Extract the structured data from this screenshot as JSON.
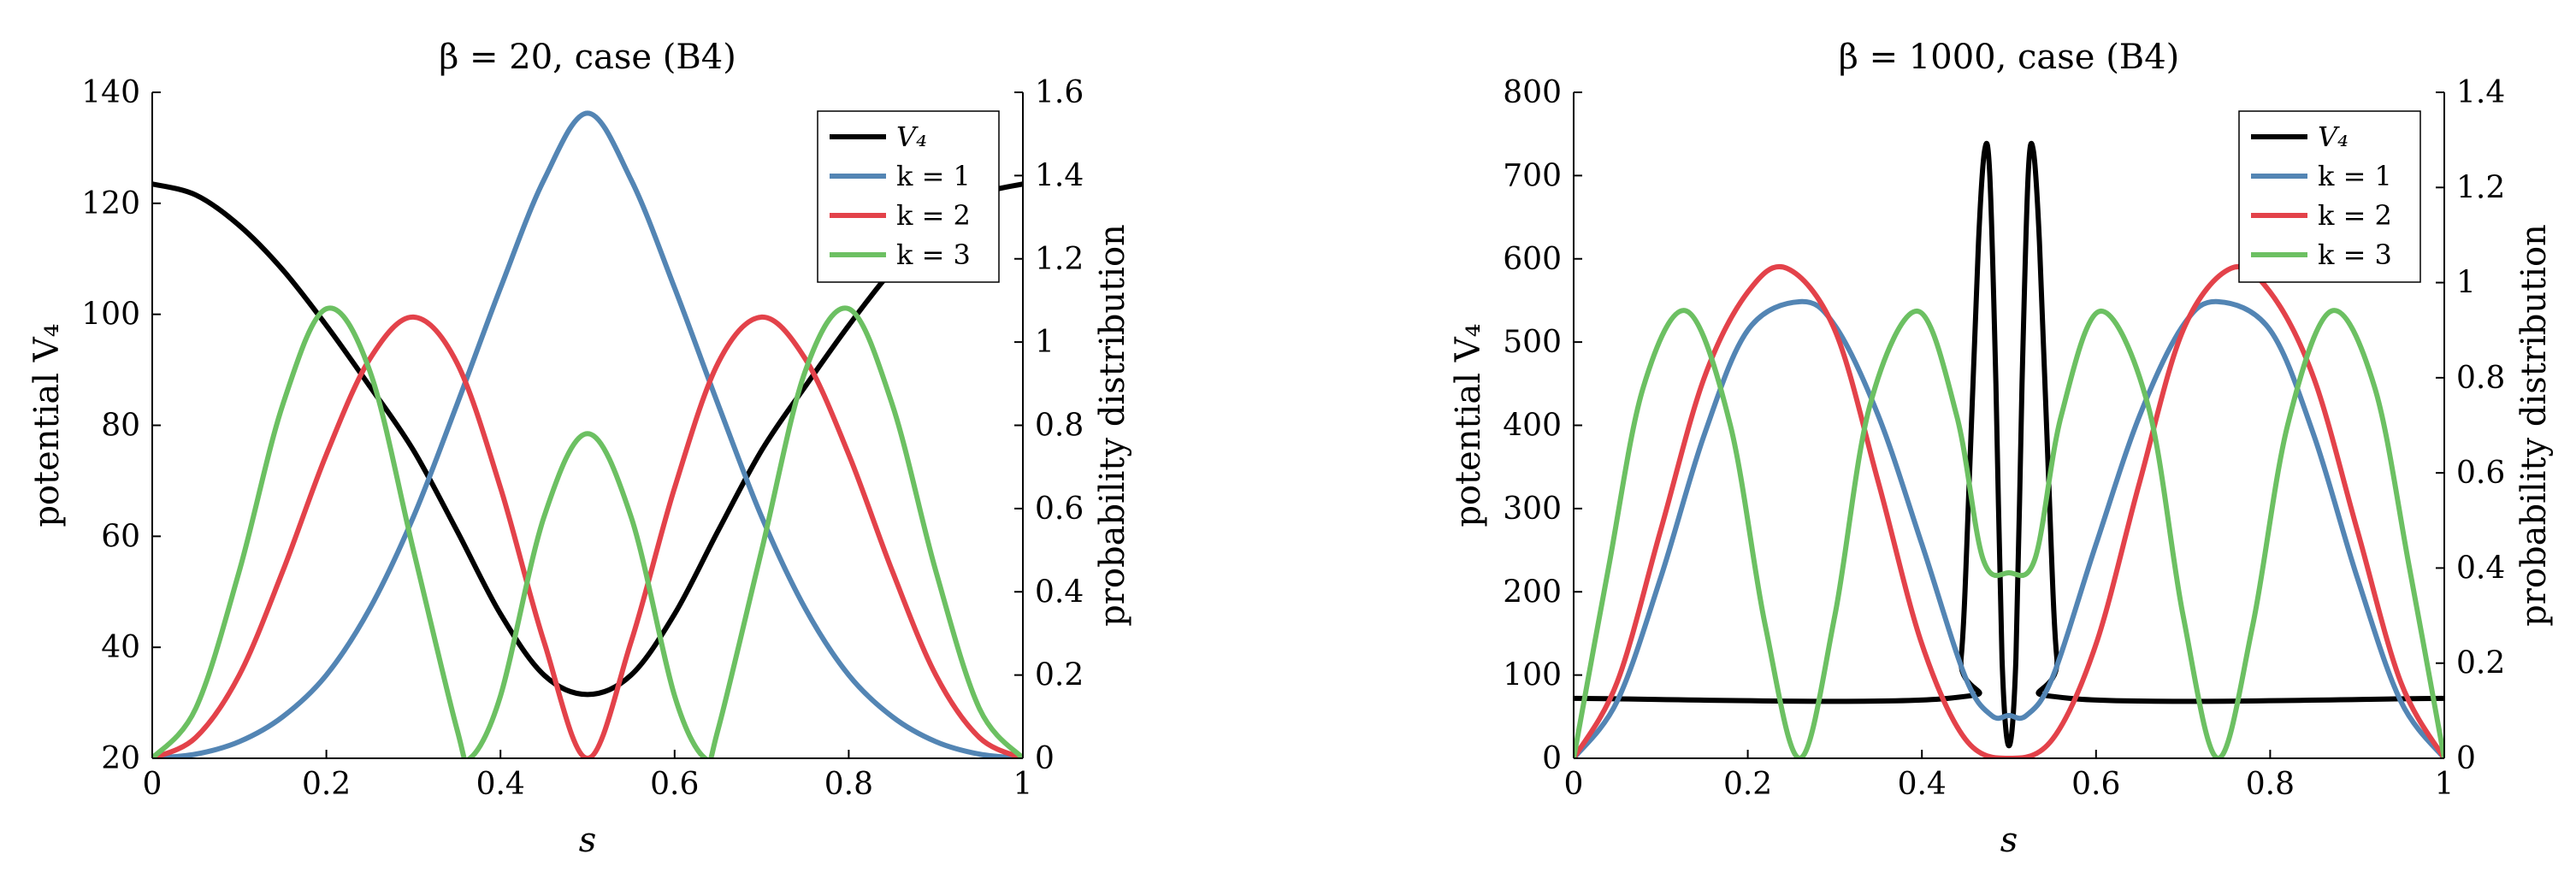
{
  "colors": {
    "V4": "#000000",
    "k1": "#5385b4",
    "k2": "#e3424a",
    "k3": "#6cc062"
  },
  "chart_data": [
    {
      "type": "line",
      "title": "β = 20, case (B4)",
      "xlabel": "s",
      "ylabel_left": "potential V₄",
      "ylabel_right": "probability distribution",
      "xlim": [
        0,
        1
      ],
      "ylim_left": [
        20,
        140
      ],
      "ylim_right": [
        0,
        1.6
      ],
      "xticks": [
        "0",
        "0.2",
        "0.4",
        "0.6",
        "0.8",
        "1"
      ],
      "yticks_left": [
        "20",
        "40",
        "60",
        "80",
        "100",
        "120",
        "140"
      ],
      "yticks_right": [
        "0",
        "0.2",
        "0.4",
        "0.6",
        "0.8",
        "1",
        "1.2",
        "1.4",
        "1.6"
      ],
      "legend": [
        "V₄",
        "k = 1",
        "k = 2",
        "k = 3"
      ],
      "legend_position": "top-right",
      "series": [
        {
          "name": "V₄",
          "axis": "left",
          "x": [
            0,
            0.05,
            0.1,
            0.15,
            0.2,
            0.25,
            0.3,
            0.35,
            0.4,
            0.45,
            0.5,
            0.55,
            0.6,
            0.65,
            0.7,
            0.75,
            0.8,
            0.85,
            0.9,
            0.95,
            1
          ],
          "values": [
            123.5,
            121.5,
            116,
            108,
            98,
            87,
            75.5,
            61,
            46,
            35,
            31.5,
            35,
            46,
            61,
            75.5,
            87,
            98,
            108,
            116,
            121.5,
            123.5
          ]
        },
        {
          "name": "k = 1",
          "axis": "right",
          "x": [
            0,
            0.05,
            0.1,
            0.15,
            0.2,
            0.25,
            0.3,
            0.35,
            0.4,
            0.45,
            0.5,
            0.55,
            0.6,
            0.65,
            0.7,
            0.75,
            0.8,
            0.85,
            0.9,
            0.95,
            1
          ],
          "values": [
            0,
            0.01,
            0.04,
            0.1,
            0.2,
            0.36,
            0.58,
            0.85,
            1.13,
            1.39,
            1.55,
            1.39,
            1.13,
            0.85,
            0.58,
            0.36,
            0.2,
            0.1,
            0.04,
            0.01,
            0
          ]
        },
        {
          "name": "k = 2",
          "axis": "right",
          "x": [
            0,
            0.05,
            0.1,
            0.15,
            0.2,
            0.25,
            0.3,
            0.35,
            0.4,
            0.45,
            0.5,
            0.55,
            0.6,
            0.65,
            0.7,
            0.75,
            0.8,
            0.85,
            0.9,
            0.95,
            1
          ],
          "values": [
            0,
            0.05,
            0.2,
            0.45,
            0.73,
            0.96,
            1.06,
            0.95,
            0.65,
            0.28,
            0,
            0.28,
            0.65,
            0.95,
            1.06,
            0.96,
            0.73,
            0.45,
            0.2,
            0.05,
            0
          ]
        },
        {
          "name": "k = 3",
          "axis": "right",
          "x": [
            0,
            0.05,
            0.1,
            0.15,
            0.2,
            0.25,
            0.3,
            0.35,
            0.365,
            0.4,
            0.45,
            0.5,
            0.55,
            0.6,
            0.635,
            0.65,
            0.7,
            0.75,
            0.8,
            0.85,
            0.9,
            0.95,
            1
          ],
          "values": [
            0,
            0.12,
            0.45,
            0.85,
            1.08,
            0.93,
            0.5,
            0.07,
            0,
            0.15,
            0.58,
            0.78,
            0.58,
            0.15,
            0,
            0.07,
            0.5,
            0.93,
            1.08,
            0.85,
            0.45,
            0.12,
            0
          ]
        }
      ]
    },
    {
      "type": "line",
      "title": "β = 1000, case (B4)",
      "xlabel": "s",
      "ylabel_left": "potential V₄",
      "ylabel_right": "probability distribution",
      "xlim": [
        0,
        1
      ],
      "ylim_left": [
        0,
        800
      ],
      "ylim_right": [
        0,
        1.4
      ],
      "xticks": [
        "0",
        "0.2",
        "0.4",
        "0.6",
        "0.8",
        "1"
      ],
      "yticks_left": [
        "0",
        "100",
        "200",
        "300",
        "400",
        "500",
        "600",
        "700",
        "800"
      ],
      "yticks_right": [
        "0",
        "0.2",
        "0.4",
        "0.6",
        "0.8",
        "1",
        "1.2",
        "1.4"
      ],
      "legend": [
        "V₄",
        "k = 1",
        "k = 2",
        "k = 3"
      ],
      "legend_position": "top-right",
      "series": [
        {
          "name": "V₄",
          "axis": "left",
          "x": [
            0,
            0.43,
            0.445,
            0.455,
            0.465,
            0.472,
            0.478,
            0.485,
            0.492,
            0.5,
            0.508,
            0.515,
            0.522,
            0.528,
            0.535,
            0.545,
            0.555,
            0.57,
            1
          ],
          "values": [
            72,
            72,
            120,
            350,
            620,
            730,
            700,
            450,
            120,
            15,
            120,
            450,
            700,
            730,
            620,
            350,
            120,
            72,
            72
          ]
        },
        {
          "name": "k = 1",
          "axis": "right",
          "x": [
            0,
            0.05,
            0.1,
            0.15,
            0.2,
            0.26,
            0.3,
            0.35,
            0.4,
            0.45,
            0.48,
            0.5,
            0.52,
            0.55,
            0.6,
            0.65,
            0.7,
            0.74,
            0.8,
            0.85,
            0.9,
            0.95,
            1
          ],
          "values": [
            0,
            0.12,
            0.38,
            0.68,
            0.9,
            0.96,
            0.91,
            0.72,
            0.45,
            0.17,
            0.09,
            0.09,
            0.09,
            0.17,
            0.45,
            0.72,
            0.91,
            0.96,
            0.9,
            0.68,
            0.38,
            0.12,
            0
          ]
        },
        {
          "name": "k = 2",
          "axis": "right",
          "x": [
            0,
            0.05,
            0.1,
            0.15,
            0.2,
            0.245,
            0.3,
            0.35,
            0.4,
            0.45,
            0.5,
            0.55,
            0.6,
            0.65,
            0.7,
            0.755,
            0.8,
            0.85,
            0.9,
            0.95,
            1
          ],
          "values": [
            0,
            0.16,
            0.48,
            0.8,
            0.98,
            1.03,
            0.9,
            0.58,
            0.24,
            0.04,
            0,
            0.04,
            0.24,
            0.58,
            0.9,
            1.03,
            0.98,
            0.8,
            0.48,
            0.16,
            0
          ]
        },
        {
          "name": "k = 3",
          "axis": "right",
          "x": [
            0,
            0.04,
            0.08,
            0.13,
            0.18,
            0.22,
            0.26,
            0.3,
            0.34,
            0.395,
            0.44,
            0.47,
            0.5,
            0.53,
            0.56,
            0.605,
            0.66,
            0.7,
            0.74,
            0.78,
            0.82,
            0.87,
            0.92,
            0.96,
            1
          ],
          "values": [
            0,
            0.4,
            0.78,
            0.94,
            0.7,
            0.28,
            0,
            0.3,
            0.74,
            0.94,
            0.72,
            0.42,
            0.39,
            0.42,
            0.72,
            0.94,
            0.74,
            0.3,
            0,
            0.28,
            0.7,
            0.94,
            0.78,
            0.4,
            0
          ]
        }
      ]
    }
  ]
}
